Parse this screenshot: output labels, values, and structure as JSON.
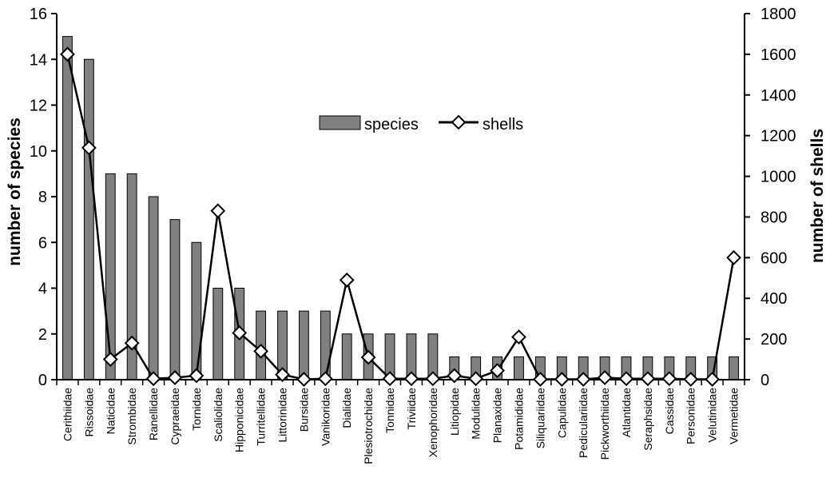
{
  "chart_data": {
    "type": "bar",
    "categories": [
      "Cerithiidae",
      "Rissoidae",
      "Naticidae",
      "Strombidae",
      "Ranellidae",
      "Cypraeidae",
      "Tornidae",
      "Scaliolidae",
      "Hipponicidae",
      "Turritellidae",
      "Littorinidae",
      "Bursidae",
      "Vanikoridae",
      "Dialidae",
      "Plesiotrochidae",
      "Tonnidae",
      "Triviidae",
      "Xenophoridae",
      "Litiopidae",
      "Modulidae",
      "Planaxidae",
      "Potamididae",
      "Siliquariidae",
      "Capulidae",
      "Pediculariidae",
      "Pickworthiidae",
      "Atlantidae",
      "Seraphsidae",
      "Cassidae",
      "Personidae",
      "Velutinidae",
      "Vermetidae"
    ],
    "series": [
      {
        "name": "species",
        "type": "bar",
        "axis": "left",
        "color": "#808080",
        "values": [
          15,
          14,
          9,
          9,
          8,
          7,
          6,
          4,
          4,
          3,
          3,
          3,
          3,
          2,
          2,
          2,
          2,
          2,
          1,
          1,
          1,
          1,
          1,
          1,
          1,
          1,
          1,
          1,
          1,
          1,
          1,
          1
        ]
      },
      {
        "name": "shells",
        "type": "line",
        "axis": "right",
        "color": "#000000",
        "marker": "diamond",
        "values": [
          1600,
          1140,
          100,
          180,
          5,
          10,
          20,
          830,
          230,
          140,
          25,
          2,
          5,
          490,
          110,
          5,
          5,
          5,
          20,
          5,
          45,
          210,
          2,
          2,
          2,
          10,
          5,
          5,
          5,
          2,
          2,
          600
        ]
      }
    ],
    "ylabel": "number of species",
    "y2label": "number of shells",
    "ylim": [
      0,
      16
    ],
    "y2lim": [
      0,
      1800
    ],
    "yticks": [
      "0",
      "2",
      "4",
      "6",
      "8",
      "10",
      "12",
      "14",
      "16"
    ],
    "y2ticks": [
      "0",
      "200",
      "400",
      "600",
      "800",
      "1000",
      "1200",
      "1400",
      "1600",
      "1800"
    ],
    "legend_position": "top-center",
    "grid": false
  }
}
